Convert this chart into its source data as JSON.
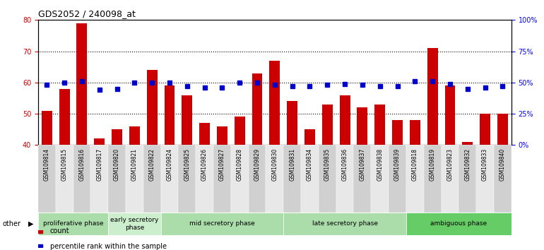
{
  "title": "GDS2052 / 240098_at",
  "samples": [
    "GSM109814",
    "GSM109815",
    "GSM109816",
    "GSM109817",
    "GSM109820",
    "GSM109821",
    "GSM109822",
    "GSM109824",
    "GSM109825",
    "GSM109826",
    "GSM109827",
    "GSM109828",
    "GSM109829",
    "GSM109830",
    "GSM109831",
    "GSM109834",
    "GSM109835",
    "GSM109836",
    "GSM109837",
    "GSM109838",
    "GSM109839",
    "GSM109818",
    "GSM109819",
    "GSM109823",
    "GSM109832",
    "GSM109833",
    "GSM109840"
  ],
  "counts": [
    51,
    58,
    79,
    42,
    45,
    46,
    64,
    59,
    56,
    47,
    46,
    49,
    63,
    67,
    54,
    45,
    53,
    56,
    52,
    53,
    48,
    48,
    71,
    59,
    41,
    50,
    50
  ],
  "percentiles_pct": [
    48,
    50,
    51,
    44,
    45,
    50,
    50,
    50,
    47,
    46,
    46,
    50,
    50,
    48,
    47,
    47,
    48,
    49,
    48,
    47,
    47,
    51,
    51,
    49,
    45,
    46,
    47
  ],
  "phases": [
    {
      "label": "proliferative phase",
      "start": 0,
      "end": 4,
      "color": "#aaddaa"
    },
    {
      "label": "early secretory\nphase",
      "start": 4,
      "end": 7,
      "color": "#cceecc"
    },
    {
      "label": "mid secretory phase",
      "start": 7,
      "end": 14,
      "color": "#aaddaa"
    },
    {
      "label": "late secretory phase",
      "start": 14,
      "end": 21,
      "color": "#aaddaa"
    },
    {
      "label": "ambiguous phase",
      "start": 21,
      "end": 27,
      "color": "#66cc66"
    }
  ],
  "ylim_left": [
    40,
    80
  ],
  "ylim_right": [
    0,
    100
  ],
  "yticks_left": [
    40,
    50,
    60,
    70,
    80
  ],
  "ytick_labels_left": [
    "40",
    "50",
    "60",
    "70",
    "80"
  ],
  "yticks_right": [
    0,
    25,
    50,
    75,
    100
  ],
  "ytick_labels_right": [
    "0%",
    "25%",
    "50%",
    "75%",
    "100%"
  ],
  "bar_color": "#CC0000",
  "dot_color": "#0000CC",
  "bg_color": "#ffffff",
  "other_label": "other"
}
